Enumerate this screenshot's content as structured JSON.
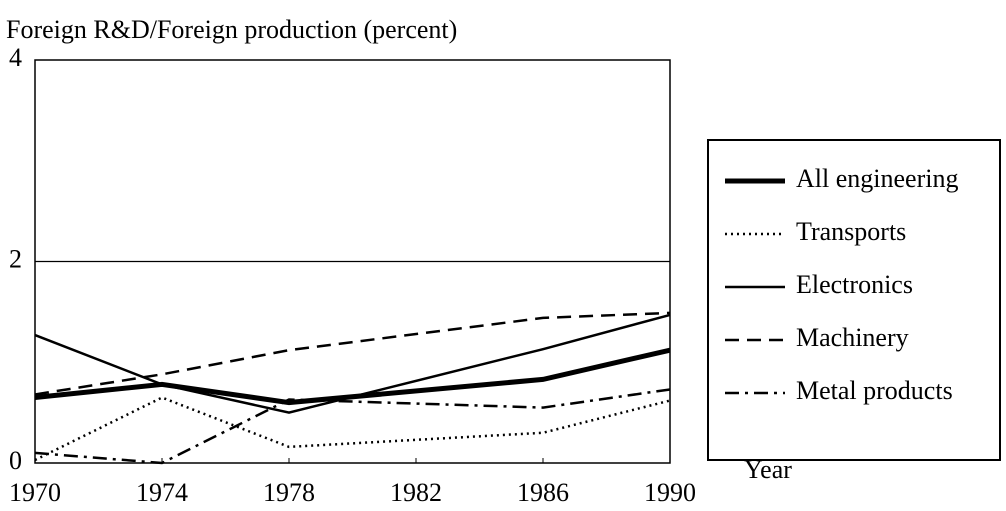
{
  "chart_data": {
    "type": "line",
    "title": "Foreign R&D/Foreign production (percent)",
    "x_label": "Year",
    "x": [
      1970,
      1974,
      1978,
      1986,
      1990
    ],
    "xlim": [
      1970,
      1990
    ],
    "xticks": [
      1970,
      1974,
      1978,
      1982,
      1986,
      1990
    ],
    "ylim": [
      0,
      4
    ],
    "yticks": [
      0,
      2,
      4
    ],
    "grid": true,
    "legend": "right",
    "series": [
      {
        "name": "All engineering",
        "color": "#000000",
        "width": 5,
        "dash": "none",
        "values": [
          0.65,
          0.78,
          0.6,
          0.83,
          1.12
        ]
      },
      {
        "name": "Transports",
        "color": "#000000",
        "width": 2.5,
        "dash": "2 4",
        "values": [
          0.03,
          0.65,
          0.16,
          0.3,
          0.62
        ]
      },
      {
        "name": "Electronics",
        "color": "#000000",
        "width": 2.5,
        "dash": "none",
        "values": [
          1.27,
          0.78,
          0.5,
          1.13,
          1.47
        ]
      },
      {
        "name": "Machinery",
        "color": "#000000",
        "width": 2.5,
        "dash": "14 8",
        "values": [
          0.68,
          0.88,
          1.12,
          1.44,
          1.49
        ]
      },
      {
        "name": "Metal products",
        "color": "#000000",
        "width": 2.5,
        "dash": "14 6 3 6",
        "values": [
          0.1,
          0.0,
          0.63,
          0.55,
          0.73
        ]
      }
    ]
  }
}
